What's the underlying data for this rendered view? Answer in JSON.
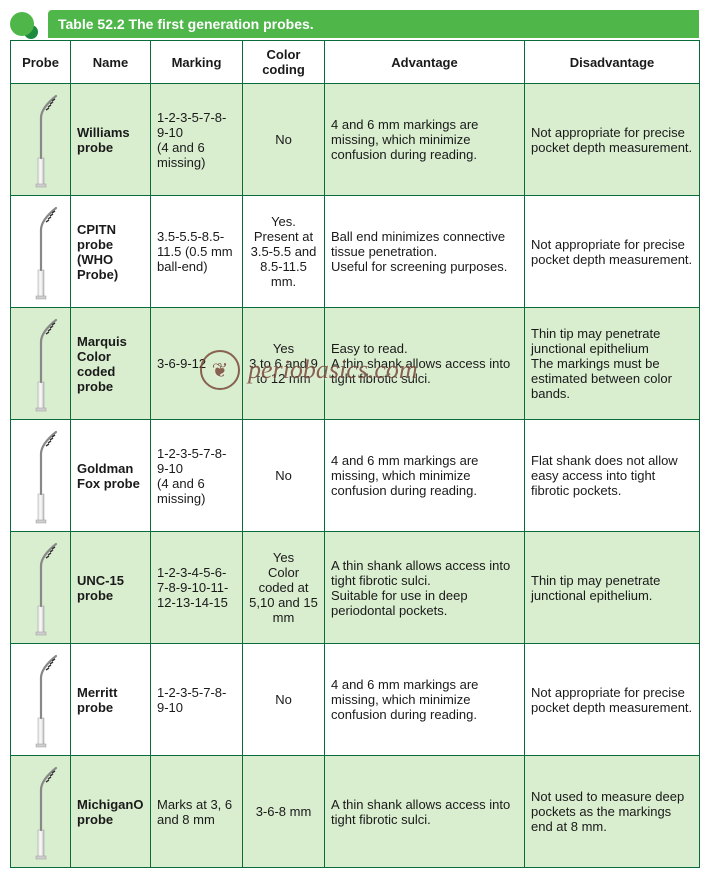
{
  "title": "Table 52.2 The first generation probes.",
  "watermark": "periobasics.com",
  "colors": {
    "header_green": "#4fb64a",
    "border_green": "#0a6b3a",
    "row_odd_bg": "#d9edcf",
    "row_even_bg": "#ffffff",
    "watermark_color": "#7a4a3a"
  },
  "columns": [
    "Probe",
    "Name",
    "Marking",
    "Color coding",
    "Advantage",
    "Disadvantage"
  ],
  "rows": [
    {
      "name": "Williams probe",
      "marking": "1-2-3-5-7-8-9-10\n(4 and 6 missing)",
      "color_coding": "No",
      "advantage": "4 and 6 mm markings are missing, which minimize confusion during reading.",
      "disadvantage": "Not appropriate for precise pocket depth measurement."
    },
    {
      "name": "CPITN probe (WHO Probe)",
      "marking": "3.5-5.5-8.5-11.5 (0.5 mm ball-end)",
      "color_coding": "Yes.\nPresent at 3.5-5.5 and 8.5-11.5 mm.",
      "advantage": "Ball end minimizes connective tissue penetration.\nUseful for screening purposes.",
      "disadvantage": "Not appropriate for precise pocket depth measurement."
    },
    {
      "name": "Marquis Color coded probe",
      "marking": "3-6-9-12",
      "color_coding": "Yes\n3 to 6 and 9 to 12 mm",
      "advantage": "Easy to read.\nA thin shank allows access into tight fibrotic sulci.",
      "disadvantage": "Thin tip may penetrate junctional epithelium\nThe markings must be estimated between color bands."
    },
    {
      "name": "Goldman Fox probe",
      "marking": "1-2-3-5-7-8-9-10\n(4 and 6 missing)",
      "color_coding": "No",
      "advantage": "4 and 6 mm markings are missing, which minimize confusion during reading.",
      "disadvantage": "Flat shank does not allow easy access into tight fibrotic pockets."
    },
    {
      "name": "UNC-15 probe",
      "marking": "1-2-3-4-5-6-7-8-9-10-11-12-13-14-15",
      "color_coding": "Yes\nColor coded at 5,10 and 15 mm",
      "advantage": "A thin shank allows access into tight fibrotic sulci.\nSuitable for use in deep periodontal pockets.",
      "disadvantage": "Thin tip may penetrate junctional epithelium."
    },
    {
      "name": "Merritt probe",
      "marking": "1-2-3-5-7-8-9-10",
      "color_coding": "No",
      "advantage": "4 and 6 mm markings are missing, which minimize confusion during reading.",
      "disadvantage": "Not appropriate for precise pocket depth measurement."
    },
    {
      "name": "MichiganO probe",
      "marking": "Marks at 3, 6 and 8 mm",
      "color_coding": "3-6-8 mm",
      "advantage": "A thin shank allows access into tight fibrotic sulci.",
      "disadvantage": "Not used to measure deep pockets as the markings end at 8 mm."
    }
  ]
}
